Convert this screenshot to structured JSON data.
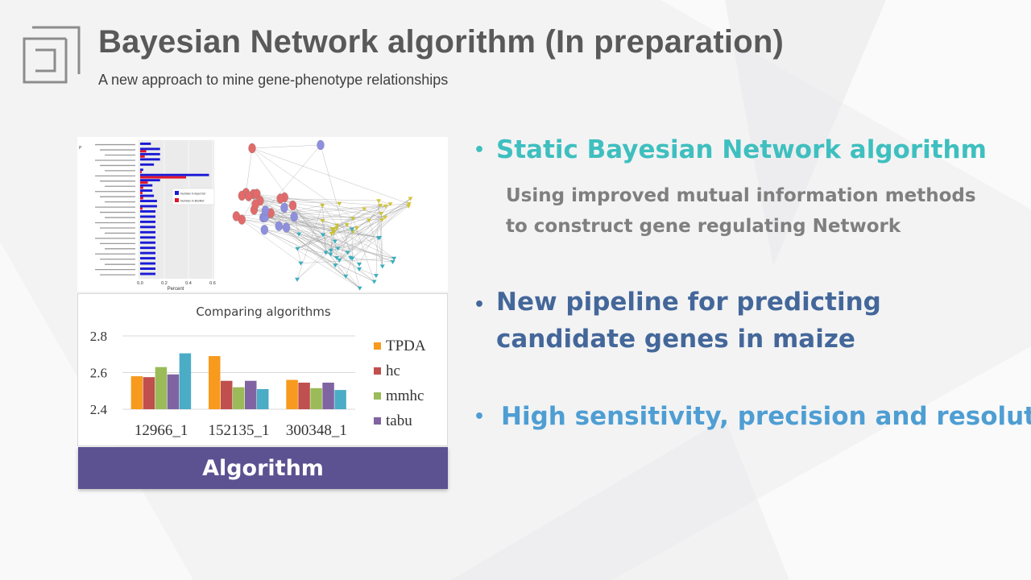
{
  "slide": {
    "title": "Bayesian Network algorithm (In preparation)",
    "subtitle": "A new approach to mine gene-phenotype  relationships"
  },
  "bullets": [
    {
      "text": "Static Bayesian Network algorithm",
      "color": "#3fbfbf"
    },
    {
      "text": "New pipeline for predicting candidate genes in maize",
      "color": "#44679a"
    },
    {
      "text": "High sensitivity, precision and resolution",
      "color": "#4e9ed3"
    }
  ],
  "bullet1_sub": {
    "line1": "Using improved mutual information methods",
    "line2": "to construct gene regulating Network"
  },
  "banner": {
    "label": "Algorithm",
    "color": "#5c5191"
  },
  "go_bar_chart": {
    "corner_label": "P",
    "xlabel": "Percent",
    "xticks": [
      "0.0",
      "0.2",
      "0.4",
      "0.6"
    ],
    "legend": [
      "Number in input list",
      "Number in BG/Ref"
    ],
    "colors": {
      "input": "#1a1ad6",
      "ref": "#e0142a"
    }
  },
  "chart_data": {
    "type": "bar",
    "title": "Comparing algorithms",
    "categories": [
      "12966_1",
      "152135_1",
      "300348_1"
    ],
    "series": [
      {
        "name": "TPDA",
        "color": "#f79a1e",
        "values": [
          2.58,
          2.69,
          2.56
        ]
      },
      {
        "name": "hc",
        "color": "#c0504d",
        "values": [
          2.575,
          2.555,
          2.545
        ]
      },
      {
        "name": "mmhc",
        "color": "#9bbb59",
        "values": [
          2.63,
          2.52,
          2.515
        ]
      },
      {
        "name": "tabu",
        "color": "#8064a2",
        "values": [
          2.59,
          2.555,
          2.545
        ]
      },
      {
        "name": "",
        "color": "#4bacc6",
        "values": [
          2.705,
          2.51,
          2.505
        ]
      }
    ],
    "yticks": [
      "2.4",
      "2.6",
      "2.8"
    ],
    "ylim": [
      2.4,
      2.8
    ],
    "grid": true,
    "legend": "right"
  }
}
